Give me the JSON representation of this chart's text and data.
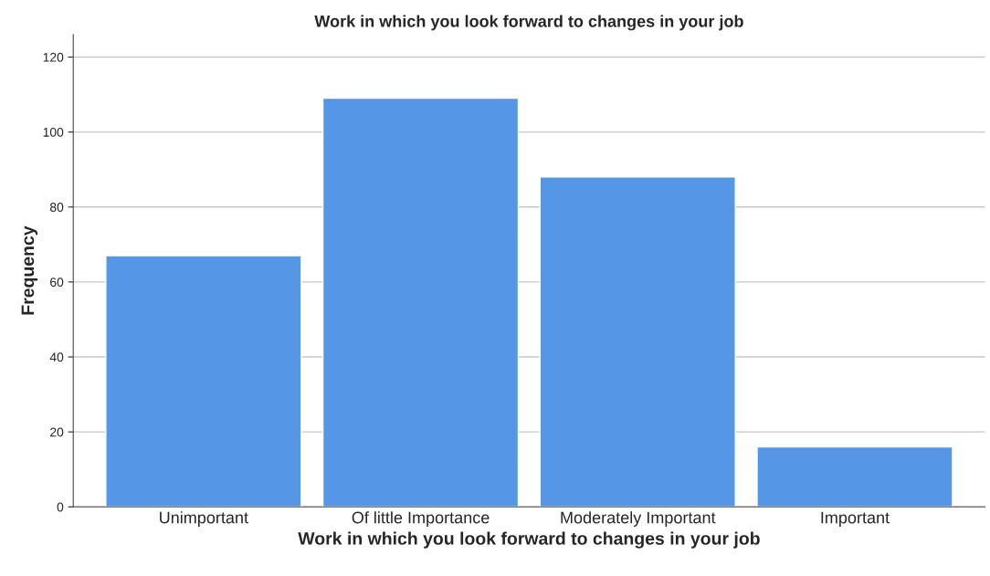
{
  "chart_data": {
    "type": "bar",
    "title": "Work in which you look forward to changes in your job",
    "xlabel": "Work in which you look forward to changes in your job",
    "ylabel": "Frequency",
    "categories": [
      "Unimportant",
      "Of little Importance",
      "Moderately Important",
      "Important"
    ],
    "values": [
      67,
      109,
      88,
      16
    ],
    "color": "#5596e6",
    "ylim": [
      0,
      126
    ],
    "yticks": [
      0,
      20,
      40,
      60,
      80,
      100,
      120
    ],
    "grid": "y"
  }
}
